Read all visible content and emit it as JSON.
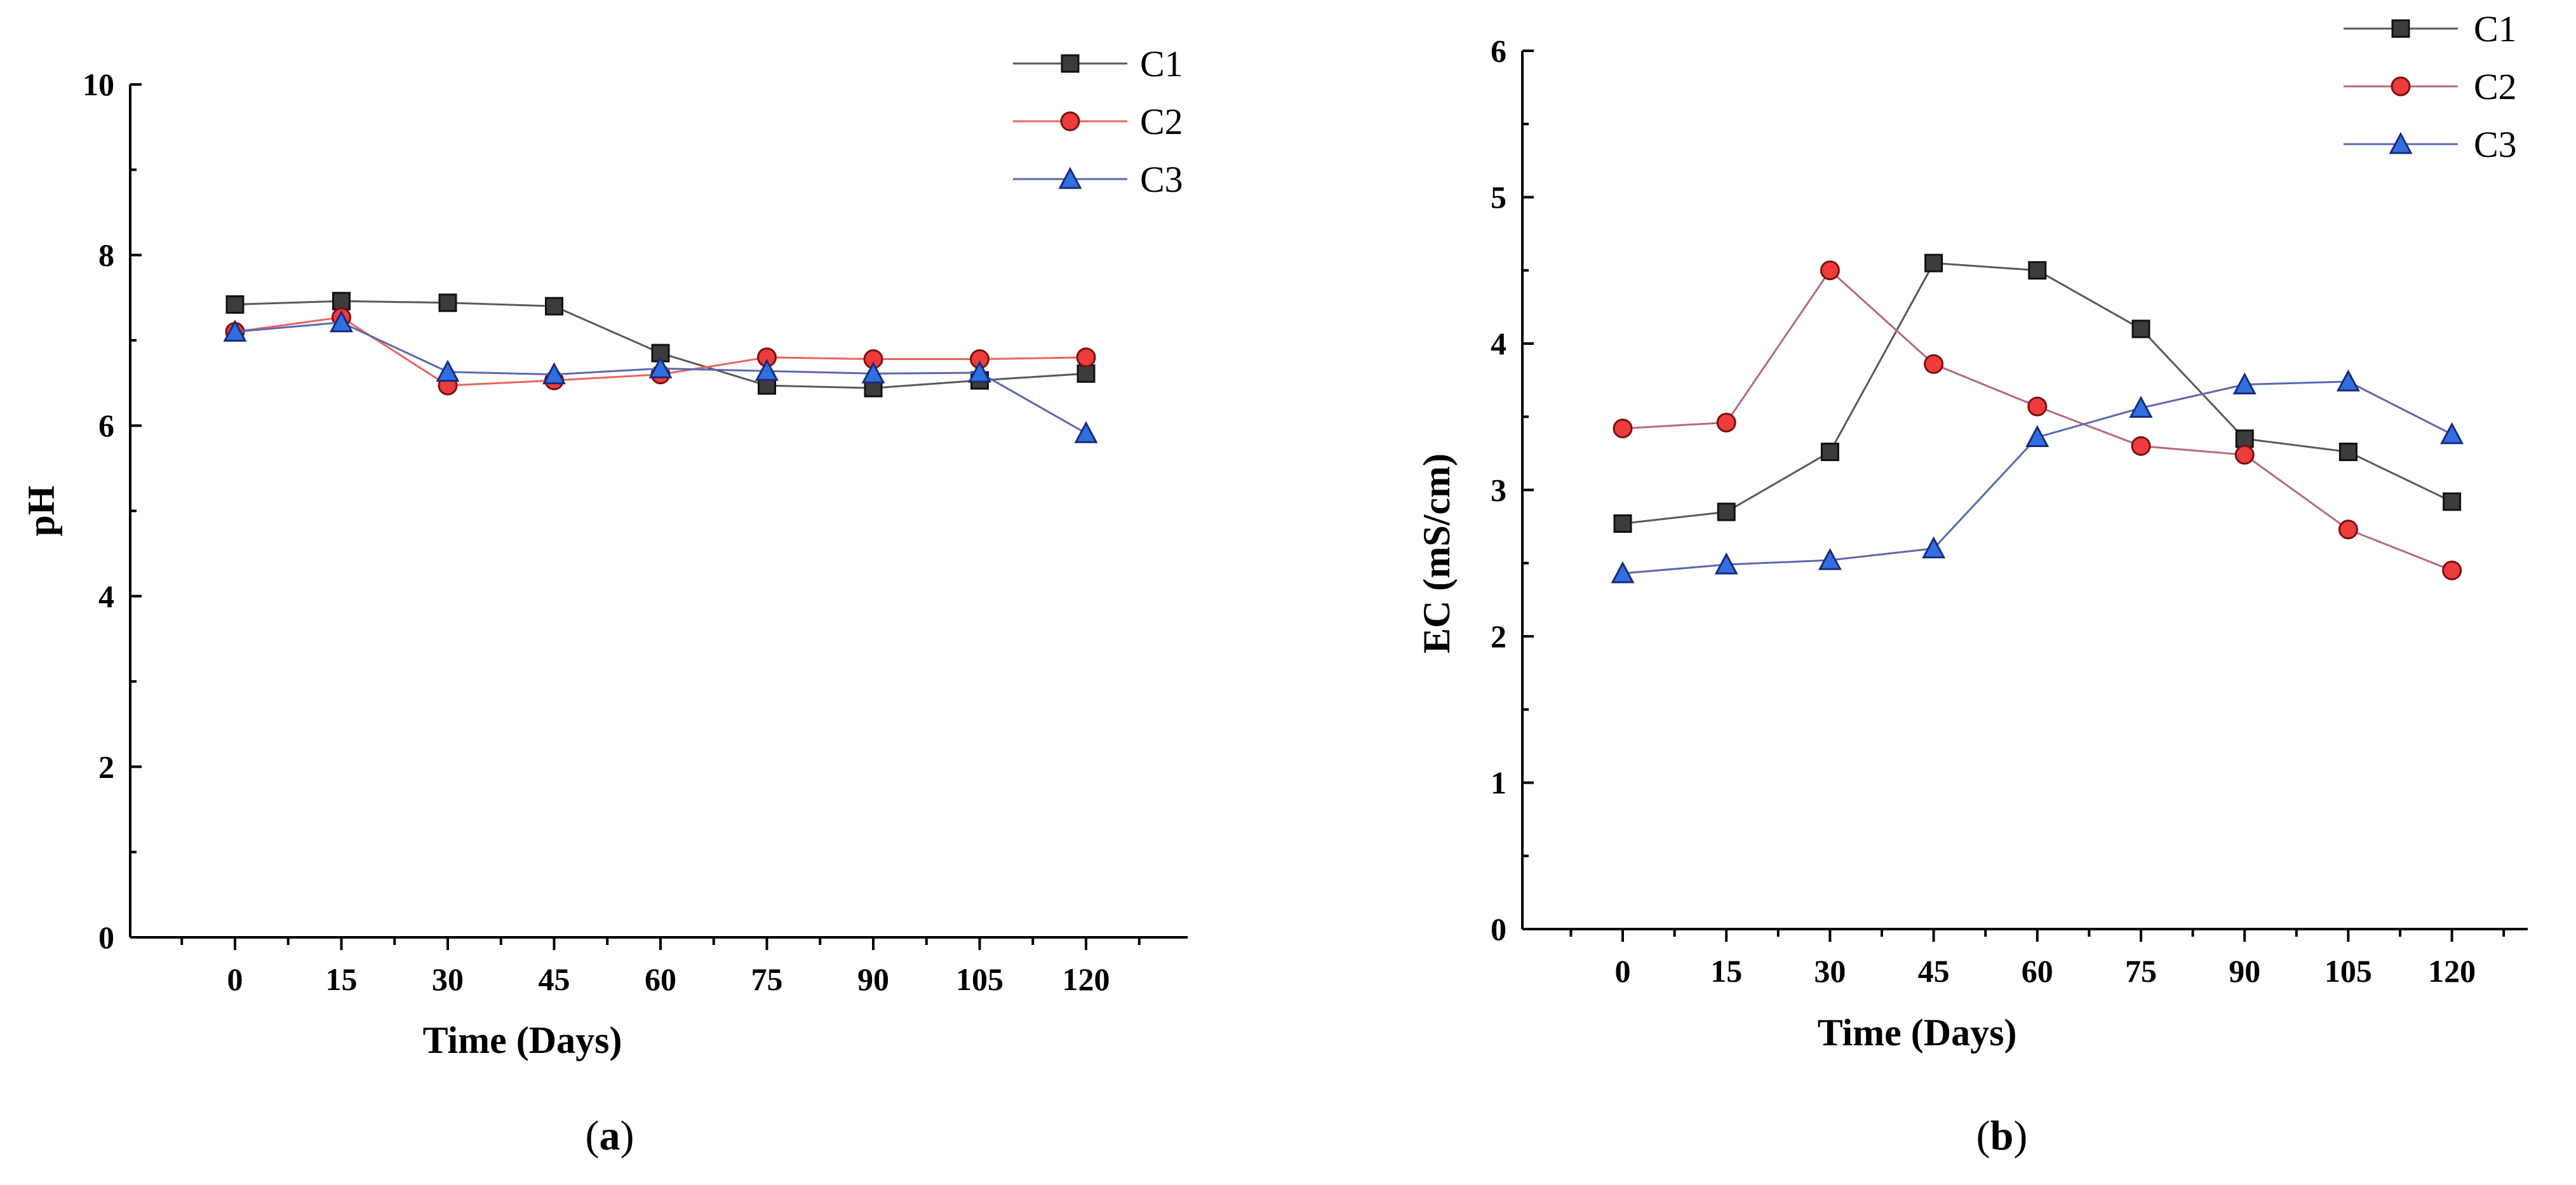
{
  "chart_data": [
    {
      "type": "line",
      "panel_label": "a",
      "x": [
        0,
        15,
        30,
        45,
        60,
        75,
        90,
        105,
        120
      ],
      "xticks": [
        "0",
        "15",
        "30",
        "45",
        "60",
        "75",
        "90",
        "105",
        "120"
      ],
      "xlabel": "Time (Days)",
      "ylabel": "pH",
      "ylim": [
        0,
        10
      ],
      "yticks": [
        "0",
        "2",
        "4",
        "6",
        "8",
        "10"
      ],
      "grid": false,
      "legend_position": "top-right",
      "series": [
        {
          "name": "C1",
          "marker": "square",
          "color": "#3c3c3c",
          "line_color": "#5a5a5a",
          "values": [
            7.42,
            7.46,
            7.44,
            7.4,
            6.85,
            6.47,
            6.44,
            6.53,
            6.61
          ]
        },
        {
          "name": "C2",
          "marker": "circle",
          "color": "#ee3b3b",
          "line_color": "#e8655f",
          "values": [
            7.1,
            7.27,
            6.47,
            6.53,
            6.6,
            6.8,
            6.78,
            6.78,
            6.8
          ]
        },
        {
          "name": "C3",
          "marker": "triangle",
          "color": "#2f6fe0",
          "line_color": "#5a68b0",
          "values": [
            7.1,
            7.21,
            6.63,
            6.6,
            6.67,
            6.64,
            6.61,
            6.62,
            5.91
          ]
        }
      ]
    },
    {
      "type": "line",
      "panel_label": "b",
      "x": [
        0,
        15,
        30,
        45,
        60,
        75,
        90,
        105,
        120
      ],
      "xticks": [
        "0",
        "15",
        "30",
        "45",
        "60",
        "75",
        "90",
        "105",
        "120"
      ],
      "xlabel": "Time (Days)",
      "ylabel": "EC (mS/cm)",
      "ylim": [
        0,
        6
      ],
      "yticks": [
        "0",
        "1",
        "2",
        "3",
        "4",
        "5",
        "6"
      ],
      "grid": false,
      "legend_position": "top-right",
      "series": [
        {
          "name": "C1",
          "marker": "square",
          "color": "#3c3c3c",
          "line_color": "#5a5a5a",
          "values": [
            2.77,
            2.85,
            3.26,
            4.55,
            4.5,
            4.1,
            3.35,
            3.26,
            2.92
          ]
        },
        {
          "name": "C2",
          "marker": "circle",
          "color": "#ee3b3b",
          "line_color": "#b56a7a",
          "values": [
            3.42,
            3.46,
            4.5,
            3.86,
            3.57,
            3.3,
            3.24,
            2.73,
            2.45
          ]
        },
        {
          "name": "C3",
          "marker": "triangle",
          "color": "#2f6fe0",
          "line_color": "#5a68b0",
          "values": [
            2.43,
            2.49,
            2.52,
            2.6,
            3.36,
            3.56,
            3.72,
            3.74,
            3.38
          ]
        }
      ]
    }
  ]
}
